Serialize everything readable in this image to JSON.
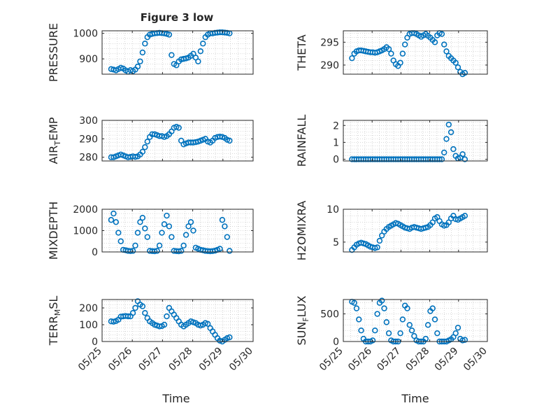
{
  "figure": {
    "title": "Figure 3 low",
    "marker_color": "#0072BD",
    "axis_color": "#262626",
    "grid_color": "#b0b0b0"
  },
  "x_axis": {
    "label": "Time",
    "ticks": [
      25,
      26,
      27,
      28,
      29,
      30
    ],
    "tick_labels": [
      "05/25",
      "05/26",
      "05/27",
      "05/28",
      "05/29",
      "05/30"
    ],
    "range": [
      25,
      30
    ]
  },
  "chart_data": [
    {
      "type": "scatter",
      "ylabel": "PRESSURE",
      "ylim": [
        840,
        1010
      ],
      "yticks": [
        900,
        1000
      ],
      "grid": true,
      "x": [
        25.3,
        25.38,
        25.46,
        25.54,
        25.62,
        25.7,
        25.78,
        25.86,
        25.94,
        26.02,
        26.1,
        26.18,
        26.26,
        26.34,
        26.42,
        26.5,
        26.58,
        26.66,
        26.74,
        26.82,
        26.9,
        26.98,
        27.06,
        27.14,
        27.22,
        27.3,
        27.38,
        27.46,
        27.54,
        27.62,
        27.7,
        27.78,
        27.86,
        27.94,
        28.02,
        28.1,
        28.18,
        28.26,
        28.34,
        28.42,
        28.5,
        28.58,
        28.66,
        28.74,
        28.82,
        28.9,
        28.98,
        29.06,
        29.14,
        29.22
      ],
      "y": [
        860,
        858,
        855,
        860,
        865,
        862,
        855,
        850,
        856,
        852,
        858,
        870,
        890,
        925,
        960,
        985,
        995,
        998,
        1000,
        1001,
        1002,
        1001,
        1000,
        998,
        995,
        915,
        880,
        875,
        890,
        898,
        900,
        902,
        905,
        912,
        920,
        905,
        890,
        930,
        960,
        985,
        995,
        1000,
        1000,
        1002,
        1003,
        1004,
        1004,
        1003,
        1002,
        1000
      ]
    },
    {
      "type": "scatter",
      "ylabel": "THETA",
      "ylim": [
        288,
        297.5
      ],
      "yticks": [
        290,
        295
      ],
      "grid": true,
      "x": [
        25.3,
        25.38,
        25.46,
        25.54,
        25.62,
        25.7,
        25.78,
        25.86,
        25.94,
        26.02,
        26.1,
        26.18,
        26.26,
        26.34,
        26.42,
        26.5,
        26.58,
        26.66,
        26.74,
        26.82,
        26.9,
        26.98,
        27.06,
        27.14,
        27.22,
        27.3,
        27.38,
        27.46,
        27.54,
        27.62,
        27.7,
        27.78,
        27.86,
        27.94,
        28.02,
        28.1,
        28.18,
        28.26,
        28.34,
        28.42,
        28.5,
        28.58,
        28.66,
        28.74,
        28.82,
        28.9,
        28.98,
        29.06,
        29.14,
        29.22
      ],
      "y": [
        291.5,
        292.5,
        293,
        293.2,
        293.2,
        293.1,
        293,
        292.9,
        292.8,
        292.8,
        292.7,
        292.8,
        293,
        293.2,
        293.5,
        293.9,
        293.5,
        292.5,
        291,
        290.2,
        289.8,
        290.5,
        292.5,
        294.5,
        296,
        296.8,
        297,
        297,
        296.8,
        296.5,
        296.2,
        296.5,
        296.8,
        296.4,
        296,
        295.5,
        295,
        296.5,
        297,
        296.8,
        294.5,
        293,
        292,
        291.5,
        291,
        290.5,
        289.5,
        288.5,
        288,
        288.3
      ]
    },
    {
      "type": "scatter",
      "ylabel": "AIR_TEMP",
      "ylim": [
        278,
        300
      ],
      "yticks": [
        280,
        290,
        300
      ],
      "grid": true,
      "x": [
        25.3,
        25.38,
        25.46,
        25.54,
        25.62,
        25.7,
        25.78,
        25.86,
        25.94,
        26.02,
        26.1,
        26.18,
        26.26,
        26.34,
        26.42,
        26.5,
        26.58,
        26.66,
        26.74,
        26.82,
        26.9,
        26.98,
        27.06,
        27.14,
        27.22,
        27.3,
        27.38,
        27.46,
        27.54,
        27.62,
        27.7,
        27.78,
        27.86,
        27.94,
        28.02,
        28.1,
        28.18,
        28.26,
        28.34,
        28.42,
        28.5,
        28.58,
        28.66,
        28.74,
        28.82,
        28.9,
        28.98,
        29.06,
        29.14,
        29.22
      ],
      "y": [
        280,
        280,
        280.5,
        281,
        281.5,
        281,
        280.5,
        280,
        280.2,
        280.5,
        280.2,
        280.5,
        281.5,
        283,
        285.5,
        288.5,
        291,
        292.5,
        292.5,
        292,
        291.5,
        291.5,
        291,
        291.5,
        292.5,
        294,
        296,
        296.5,
        296,
        289,
        287,
        287.5,
        288,
        288,
        288,
        288.2,
        288.5,
        289,
        289.5,
        290,
        288.5,
        288,
        289,
        290.5,
        291,
        291.2,
        291,
        290.5,
        289.5,
        289
      ]
    },
    {
      "type": "scatter",
      "ylabel": "RAINFALL",
      "ylim": [
        -0.1,
        2.3
      ],
      "yticks": [
        0,
        1,
        2
      ],
      "grid": true,
      "x": [
        25.3,
        25.38,
        25.46,
        25.54,
        25.62,
        25.7,
        25.78,
        25.86,
        25.94,
        26.02,
        26.1,
        26.18,
        26.26,
        26.34,
        26.42,
        26.5,
        26.58,
        26.66,
        26.74,
        26.82,
        26.9,
        26.98,
        27.06,
        27.14,
        27.22,
        27.3,
        27.38,
        27.46,
        27.54,
        27.62,
        27.7,
        27.78,
        27.86,
        27.94,
        28.02,
        28.1,
        28.18,
        28.26,
        28.34,
        28.42,
        28.5,
        28.58,
        28.66,
        28.74,
        28.82,
        28.9,
        28.98,
        29.06,
        29.14,
        29.22
      ],
      "y": [
        0,
        0,
        0,
        0,
        0,
        0,
        0,
        0,
        0,
        0,
        0,
        0,
        0,
        0,
        0,
        0,
        0,
        0,
        0,
        0,
        0,
        0,
        0,
        0,
        0,
        0,
        0,
        0,
        0,
        0,
        0,
        0,
        0,
        0,
        0,
        0,
        0,
        0,
        0,
        0,
        0.4,
        1.2,
        2.05,
        1.6,
        0.6,
        0.2,
        0.05,
        0.1,
        0.3,
        0
      ]
    },
    {
      "type": "scatter",
      "ylabel": "MIXDEPTH",
      "ylim": [
        0,
        2000
      ],
      "yticks": [
        0,
        1000,
        2000
      ],
      "grid": true,
      "x": [
        25.3,
        25.38,
        25.46,
        25.54,
        25.62,
        25.7,
        25.78,
        25.86,
        25.94,
        26.02,
        26.1,
        26.18,
        26.26,
        26.34,
        26.42,
        26.5,
        26.58,
        26.66,
        26.74,
        26.82,
        26.9,
        26.98,
        27.06,
        27.14,
        27.22,
        27.3,
        27.38,
        27.46,
        27.54,
        27.62,
        27.7,
        27.78,
        27.86,
        27.94,
        28.02,
        28.1,
        28.18,
        28.26,
        28.34,
        28.42,
        28.5,
        28.58,
        28.66,
        28.74,
        28.82,
        28.9,
        28.98,
        29.06,
        29.14,
        29.22
      ],
      "y": [
        1500,
        1800,
        1400,
        900,
        500,
        100,
        80,
        50,
        40,
        50,
        300,
        900,
        1400,
        1600,
        1100,
        700,
        50,
        40,
        30,
        50,
        300,
        900,
        1300,
        1700,
        1200,
        700,
        50,
        40,
        30,
        50,
        300,
        800,
        1200,
        1400,
        1000,
        200,
        150,
        100,
        80,
        50,
        40,
        30,
        40,
        60,
        100,
        150,
        1500,
        1200,
        700,
        50
      ]
    },
    {
      "type": "scatter",
      "ylabel": "H2OMIXRA",
      "ylim": [
        3.5,
        10
      ],
      "yticks": [
        5,
        10
      ],
      "grid": true,
      "x": [
        25.3,
        25.38,
        25.46,
        25.54,
        25.62,
        25.7,
        25.78,
        25.86,
        25.94,
        26.02,
        26.1,
        26.18,
        26.26,
        26.34,
        26.42,
        26.5,
        26.58,
        26.66,
        26.74,
        26.82,
        26.9,
        26.98,
        27.06,
        27.14,
        27.22,
        27.3,
        27.38,
        27.46,
        27.54,
        27.62,
        27.7,
        27.78,
        27.86,
        27.94,
        28.02,
        28.1,
        28.18,
        28.26,
        28.34,
        28.42,
        28.5,
        28.58,
        28.66,
        28.74,
        28.82,
        28.9,
        28.98,
        29.06,
        29.14,
        29.22
      ],
      "y": [
        3.8,
        4.2,
        4.6,
        4.8,
        4.9,
        4.8,
        4.7,
        4.5,
        4.3,
        4.2,
        4.1,
        4.2,
        5.2,
        6.0,
        6.6,
        7.0,
        7.3,
        7.5,
        7.7,
        7.9,
        7.8,
        7.6,
        7.4,
        7.2,
        7.1,
        7.0,
        7.2,
        7.3,
        7.2,
        7.1,
        7.0,
        7.1,
        7.2,
        7.3,
        7.6,
        8.0,
        8.6,
        8.8,
        8.2,
        7.7,
        7.5,
        7.6,
        8.0,
        8.6,
        9.0,
        8.5,
        8.4,
        8.6,
        8.8,
        9.0
      ]
    },
    {
      "type": "scatter",
      "ylabel": "TERR_MSL",
      "ylim": [
        0,
        250
      ],
      "yticks": [
        0,
        100,
        200
      ],
      "grid": true,
      "x": [
        25.3,
        25.38,
        25.46,
        25.54,
        25.62,
        25.7,
        25.78,
        25.86,
        25.94,
        26.02,
        26.1,
        26.18,
        26.26,
        26.34,
        26.42,
        26.5,
        26.58,
        26.66,
        26.74,
        26.82,
        26.9,
        26.98,
        27.06,
        27.14,
        27.22,
        27.3,
        27.38,
        27.46,
        27.54,
        27.62,
        27.7,
        27.78,
        27.86,
        27.94,
        28.02,
        28.1,
        28.18,
        28.26,
        28.34,
        28.42,
        28.5,
        28.58,
        28.66,
        28.74,
        28.82,
        28.9,
        28.98,
        29.06,
        29.14,
        29.22
      ],
      "y": [
        120,
        118,
        122,
        130,
        148,
        150,
        152,
        150,
        150,
        170,
        200,
        240,
        220,
        210,
        170,
        140,
        120,
        110,
        100,
        95,
        90,
        92,
        100,
        150,
        200,
        180,
        160,
        140,
        120,
        100,
        90,
        100,
        110,
        120,
        115,
        110,
        100,
        95,
        100,
        110,
        105,
        80,
        60,
        40,
        20,
        5,
        0,
        10,
        20,
        25
      ]
    },
    {
      "type": "scatter",
      "ylabel": "SUN_FLUX",
      "ylim": [
        0,
        760
      ],
      "yticks": [
        0,
        500
      ],
      "grid": true,
      "x": [
        25.3,
        25.38,
        25.46,
        25.54,
        25.62,
        25.7,
        25.78,
        25.86,
        25.94,
        26.02,
        26.1,
        26.18,
        26.26,
        26.34,
        26.42,
        26.5,
        26.58,
        26.66,
        26.74,
        26.82,
        26.9,
        26.98,
        27.06,
        27.14,
        27.22,
        27.3,
        27.38,
        27.46,
        27.54,
        27.62,
        27.7,
        27.78,
        27.86,
        27.94,
        28.02,
        28.1,
        28.18,
        28.26,
        28.34,
        28.42,
        28.5,
        28.58,
        28.66,
        28.74,
        28.82,
        28.9,
        28.98,
        29.06,
        29.14,
        29.22
      ],
      "y": [
        720,
        700,
        600,
        400,
        200,
        50,
        0,
        0,
        0,
        20,
        200,
        500,
        700,
        740,
        600,
        350,
        150,
        20,
        0,
        0,
        0,
        150,
        400,
        650,
        600,
        300,
        200,
        100,
        20,
        0,
        0,
        0,
        50,
        300,
        550,
        600,
        400,
        150,
        0,
        0,
        0,
        0,
        20,
        40,
        80,
        150,
        250,
        50,
        20,
        30
      ]
    }
  ]
}
